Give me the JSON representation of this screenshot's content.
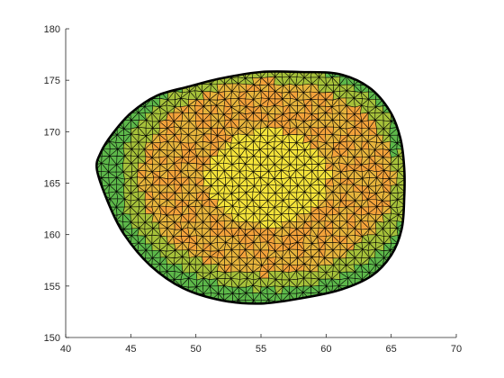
{
  "chart_data": {
    "type": "surface",
    "title": "",
    "xlabel": "",
    "ylabel": "",
    "xlim": [
      40,
      70
    ],
    "ylim": [
      150,
      180
    ],
    "xticks": [
      40,
      45,
      50,
      55,
      60,
      65,
      70
    ],
    "yticks": [
      150,
      155,
      160,
      165,
      170,
      175,
      180
    ],
    "grid": false,
    "legend": "none",
    "mesh": "triangulated",
    "edge_color": "#000000",
    "colormap": [
      "#5db84a",
      "#a6c13a",
      "#e6b43c",
      "#f3a23a",
      "#f4e33a"
    ],
    "outline": [
      [
        42.4,
        166.3
      ],
      [
        42.7,
        168.0
      ],
      [
        43.6,
        169.8
      ],
      [
        45.0,
        171.8
      ],
      [
        47.0,
        173.5
      ],
      [
        49.5,
        174.4
      ],
      [
        52.0,
        175.2
      ],
      [
        55.0,
        175.8
      ],
      [
        58.0,
        175.8
      ],
      [
        61.0,
        175.6
      ],
      [
        63.3,
        174.3
      ],
      [
        64.9,
        172.0
      ],
      [
        65.7,
        169.4
      ],
      [
        66.0,
        166.5
      ],
      [
        66.0,
        163.5
      ],
      [
        65.8,
        160.5
      ],
      [
        65.0,
        158.0
      ],
      [
        63.5,
        156.0
      ],
      [
        61.0,
        154.6
      ],
      [
        58.0,
        153.8
      ],
      [
        55.0,
        153.3
      ],
      [
        52.0,
        153.6
      ],
      [
        49.0,
        154.8
      ],
      [
        46.5,
        157.0
      ],
      [
        44.5,
        160.0
      ],
      [
        43.3,
        163.0
      ]
    ],
    "value_center": [
      55.5,
      165.5
    ]
  }
}
